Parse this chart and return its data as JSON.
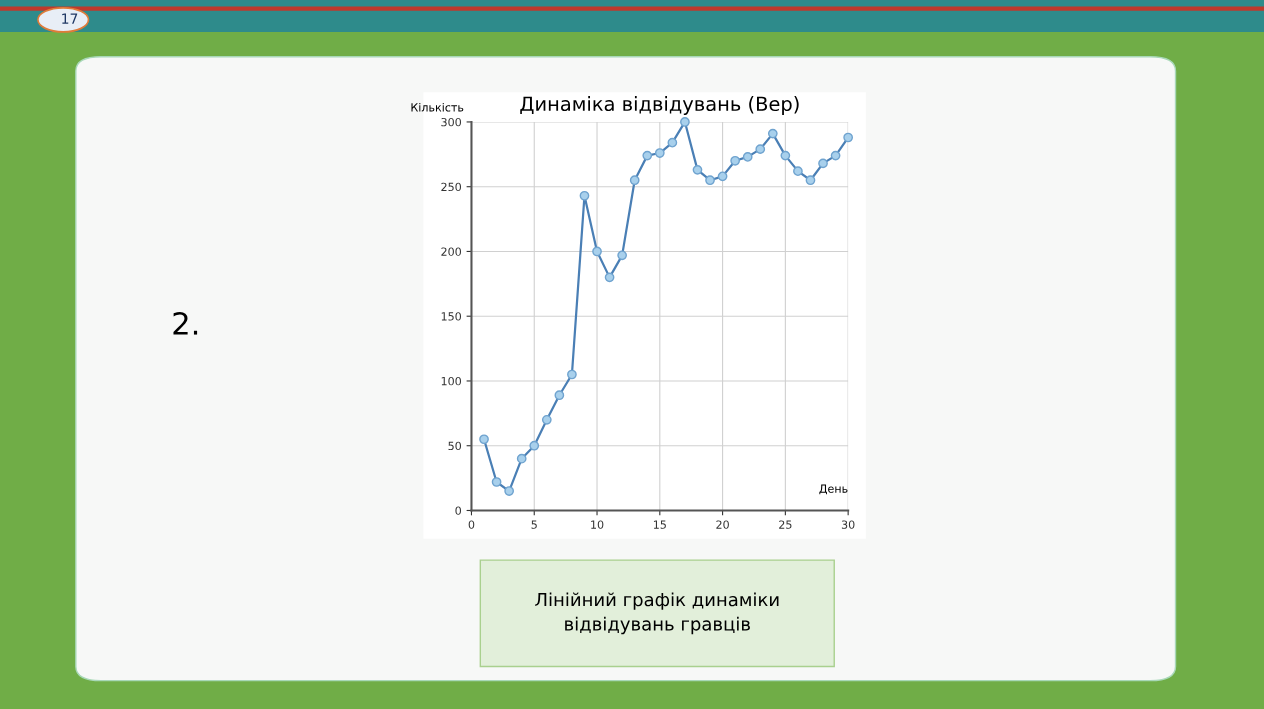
{
  "chart_data": {
    "type": "line",
    "title": "Динаміка відвідувань (Вер)",
    "xlabel": "День",
    "ylabel": "Кількість",
    "x": [
      1,
      2,
      3,
      4,
      5,
      6,
      7,
      8,
      9,
      10,
      11,
      12,
      13,
      14,
      15,
      16,
      17,
      18,
      19,
      20,
      21,
      22,
      23,
      24,
      25,
      26,
      27,
      28,
      29,
      30
    ],
    "series": [
      {
        "color": "#4a7fb5",
        "values": [
          55,
          22,
          15,
          40,
          50,
          70,
          89,
          105,
          243,
          200,
          180,
          197,
          255,
          274,
          276,
          284,
          300,
          263,
          255,
          258,
          270,
          273,
          279,
          291,
          274,
          262,
          255,
          268,
          274,
          288
        ]
      }
    ],
    "xlim": [
      0,
      30
    ],
    "xticks": [
      0,
      5,
      10,
      15,
      20,
      25,
      30
    ],
    "ylim": [
      0,
      300
    ],
    "yticks": [
      0,
      50,
      100,
      150,
      200,
      250,
      300
    ],
    "grid": true,
    "marker": "circle",
    "line_style": "solid",
    "legend": false,
    "annotations": [
      "17",
      "2.",
      "Лінійний графік динаміки\nвідвідувань гравців"
    ]
  }
}
